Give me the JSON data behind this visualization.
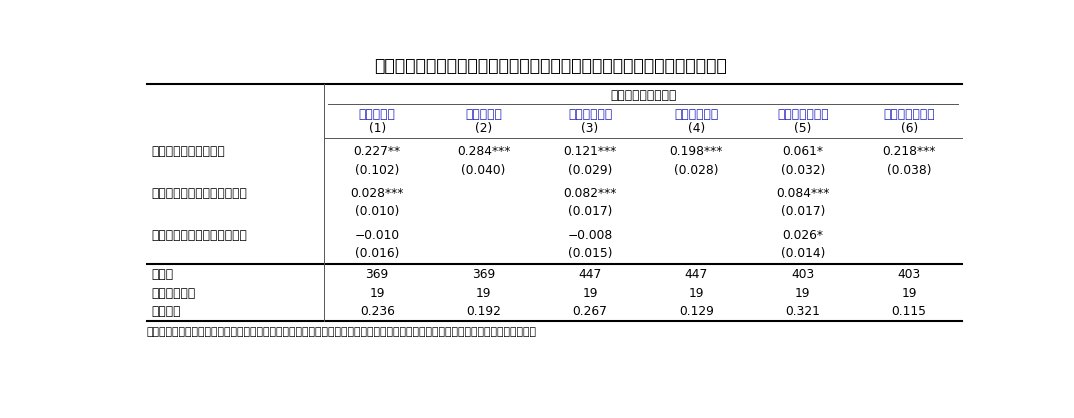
{
  "title": "表３　類似薬効比較方式対象医薬品における革新性と価格プレミアムの関係",
  "header_group": "価格プレミアム差分",
  "col_headers_line1": [
    "米国－日本",
    "米国－日本",
    "米国－ドイツ",
    "米国－ドイツ",
    "米国－イギリス",
    "米国－イギリス"
  ],
  "col_headers_line2": [
    "(1)",
    "(2)",
    "(3)",
    "(4)",
    "(5)",
    "(6)"
  ],
  "var_row_labels": [
    "革新性差分：合成指標",
    "米国：新薬の上市後経過年数",
    "各国：新薬の上市後経過年数"
  ],
  "stat_row_labels": [
    "観測数",
    "医薬品成分数",
    "決定係数"
  ],
  "cell_data": [
    [
      "0.227**",
      "0.284***",
      "0.121***",
      "0.198***",
      "0.061*",
      "0.218***"
    ],
    [
      "(0.102)",
      "(0.040)",
      "(0.029)",
      "(0.028)",
      "(0.032)",
      "(0.038)"
    ],
    [
      "0.028***",
      "",
      "0.082***",
      "",
      "0.084***",
      ""
    ],
    [
      "(0.010)",
      "",
      "(0.017)",
      "",
      "(0.017)",
      ""
    ],
    [
      "−0.010",
      "",
      "−0.008",
      "",
      "0.026*",
      ""
    ],
    [
      "(0.016)",
      "",
      "(0.015)",
      "",
      "(0.014)",
      ""
    ],
    [
      "369",
      "369",
      "447",
      "447",
      "403",
      "403"
    ],
    [
      "19",
      "19",
      "19",
      "19",
      "19",
      "19"
    ],
    [
      "0.236",
      "0.192",
      "0.267",
      "0.129",
      "0.321",
      "0.115"
    ]
  ],
  "footnote": "注：すべての推定式で年ダミーを入れている。カッコ内は不均一分散に対して頑健な標準誤差を示す。定数項の結果は省略している。",
  "bg_color": "#ffffff",
  "text_color": "#000000",
  "header_color": "#1f1fbf",
  "thick_line_color": "#000000",
  "thin_line_color": "#555555"
}
